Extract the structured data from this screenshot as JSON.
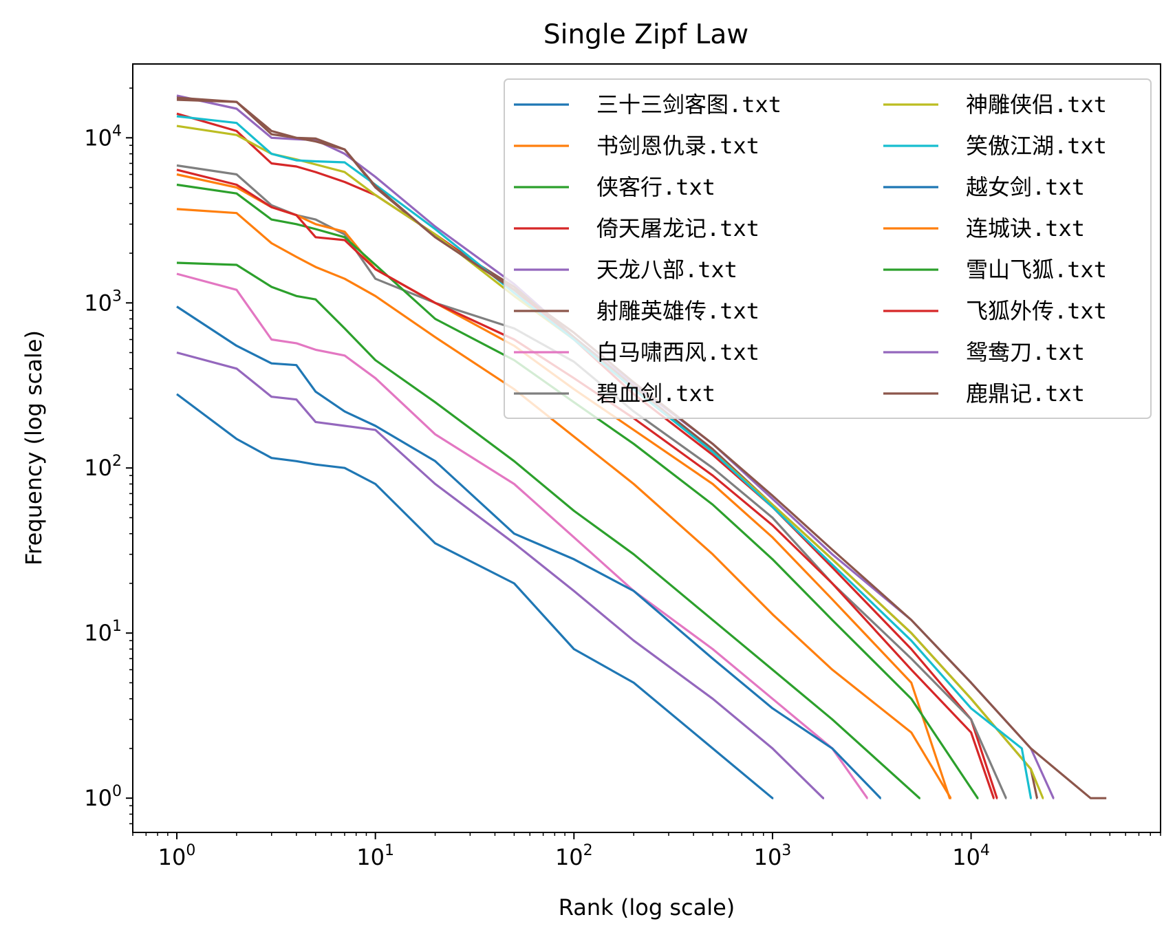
{
  "chart_data": {
    "type": "line",
    "title": "Single Zipf Law",
    "xlabel": "Rank (log scale)",
    "ylabel": "Frequency (log scale)",
    "xscale": "log",
    "yscale": "log",
    "xlim": [
      0.6,
      90000
    ],
    "ylim": [
      0.62,
      28000
    ],
    "xticks": [
      1,
      10,
      100,
      1000,
      10000
    ],
    "yticks": [
      1,
      10,
      100,
      1000,
      10000
    ],
    "xtick_labels": [
      {
        "base": "10",
        "exp": "0"
      },
      {
        "base": "10",
        "exp": "1"
      },
      {
        "base": "10",
        "exp": "2"
      },
      {
        "base": "10",
        "exp": "3"
      },
      {
        "base": "10",
        "exp": "4"
      }
    ],
    "ytick_labels": [
      {
        "base": "10",
        "exp": "0"
      },
      {
        "base": "10",
        "exp": "1"
      },
      {
        "base": "10",
        "exp": "2"
      },
      {
        "base": "10",
        "exp": "3"
      },
      {
        "base": "10",
        "exp": "4"
      }
    ],
    "grid": false,
    "legend": {
      "position": "upper right",
      "columns": 2
    },
    "series": [
      {
        "name": "三十三剑客图.txt",
        "color": "#1f77b4",
        "x": [
          1,
          2,
          3,
          4,
          5,
          7,
          10,
          20,
          50,
          100,
          200,
          500,
          1000,
          1010
        ],
        "y": [
          280,
          150,
          115,
          110,
          105,
          100,
          80,
          35,
          20,
          8,
          5,
          2,
          1,
          1
        ]
      },
      {
        "name": "书剑恩仇录.txt",
        "color": "#ff7f0e",
        "x": [
          1,
          2,
          3,
          4,
          5,
          7,
          10,
          20,
          50,
          100,
          200,
          500,
          1000,
          2000,
          5000,
          7900,
          7950
        ],
        "y": [
          3700,
          3500,
          2300,
          1900,
          1650,
          1400,
          1100,
          620,
          300,
          155,
          80,
          30,
          13,
          6,
          2.5,
          1,
          1
        ]
      },
      {
        "name": "侠客行.txt",
        "color": "#2ca02c",
        "x": [
          1,
          2,
          3,
          4,
          5,
          7,
          10,
          20,
          50,
          100,
          200,
          500,
          1000,
          2000,
          5500,
          5550
        ],
        "y": [
          1750,
          1700,
          1250,
          1100,
          1050,
          700,
          450,
          250,
          110,
          55,
          30,
          12,
          6,
          3,
          1,
          1
        ]
      },
      {
        "name": "倚天屠龙记.txt",
        "color": "#d62728",
        "x": [
          1,
          2,
          3,
          4,
          5,
          7,
          10,
          20,
          50,
          100,
          200,
          500,
          1000,
          2000,
          5000,
          10000,
          13500,
          13600
        ],
        "y": [
          14000,
          11000,
          7000,
          6700,
          6200,
          5400,
          4500,
          2600,
          1200,
          600,
          280,
          120,
          58,
          25,
          8,
          3,
          1,
          1
        ]
      },
      {
        "name": "天龙八部.txt",
        "color": "#9467bd",
        "x": [
          1,
          2,
          3,
          4,
          5,
          7,
          10,
          20,
          50,
          100,
          200,
          500,
          1000,
          2000,
          5000,
          10000,
          20000,
          26000,
          26200
        ],
        "y": [
          18000,
          15000,
          10000,
          9800,
          9700,
          8000,
          5800,
          2900,
          1300,
          620,
          320,
          140,
          65,
          30,
          12,
          5,
          2,
          1,
          1
        ]
      },
      {
        "name": "射雕英雄传.txt",
        "color": "#8c564b",
        "x": [
          1,
          2,
          3,
          4,
          5,
          7,
          10,
          20,
          50,
          100,
          200,
          500,
          1000,
          2000,
          5000,
          10000,
          20000,
          21500,
          21600
        ],
        "y": [
          17000,
          16500,
          10500,
          10000,
          9900,
          8500,
          5000,
          2500,
          1250,
          620,
          310,
          130,
          60,
          28,
          10,
          4,
          1.5,
          1,
          1
        ]
      },
      {
        "name": "白马啸西风.txt",
        "color": "#e377c2",
        "x": [
          1,
          2,
          3,
          4,
          5,
          7,
          10,
          20,
          50,
          100,
          200,
          500,
          1000,
          2000,
          3000,
          3020
        ],
        "y": [
          1500,
          1200,
          600,
          570,
          520,
          480,
          350,
          160,
          80,
          38,
          18,
          8,
          4,
          2,
          1,
          1
        ]
      },
      {
        "name": "碧血剑.txt",
        "color": "#7f7f7f",
        "x": [
          1,
          2,
          3,
          4,
          5,
          7,
          10,
          20,
          50,
          100,
          200,
          500,
          1000,
          2000,
          5000,
          10000,
          15000,
          15100
        ],
        "y": [
          6800,
          6000,
          3900,
          3400,
          3200,
          2600,
          1400,
          1000,
          700,
          440,
          220,
          100,
          50,
          20,
          7,
          3,
          1,
          1
        ]
      },
      {
        "name": "神雕侠侣.txt",
        "color": "#bcbd22",
        "x": [
          1,
          2,
          3,
          4,
          5,
          7,
          10,
          20,
          50,
          100,
          200,
          500,
          1000,
          2000,
          5000,
          10000,
          20000,
          23000,
          23200
        ],
        "y": [
          11800,
          10400,
          8000,
          7400,
          6900,
          6200,
          4500,
          2600,
          1100,
          600,
          300,
          125,
          60,
          28,
          10,
          4,
          1.5,
          1,
          1
        ]
      },
      {
        "name": "笑傲江湖.txt",
        "color": "#17becf",
        "x": [
          1,
          2,
          3,
          4,
          5,
          7,
          10,
          20,
          50,
          100,
          200,
          500,
          1000,
          2000,
          5000,
          10000,
          18000,
          20000,
          20200
        ],
        "y": [
          13500,
          12300,
          8000,
          7300,
          7200,
          7100,
          5200,
          2800,
          1150,
          600,
          300,
          125,
          58,
          26,
          9,
          3.5,
          2,
          1,
          1
        ]
      },
      {
        "name": "越女剑.txt",
        "color": "#1f77b4",
        "x": [
          1,
          2,
          3,
          4,
          5,
          7,
          10,
          20,
          50,
          100,
          200,
          500,
          1000,
          2000,
          3500,
          3520
        ],
        "y": [
          950,
          550,
          430,
          420,
          290,
          220,
          180,
          110,
          40,
          28,
          18,
          7,
          3.5,
          2,
          1,
          1
        ]
      },
      {
        "name": "连城诀.txt",
        "color": "#ff7f0e",
        "x": [
          1,
          2,
          3,
          4,
          5,
          7,
          10,
          20,
          50,
          100,
          200,
          500,
          1000,
          2000,
          5000,
          7800,
          7850
        ],
        "y": [
          6000,
          5000,
          3800,
          3400,
          3000,
          2700,
          1600,
          1000,
          550,
          300,
          170,
          80,
          38,
          16,
          5,
          1,
          1
        ]
      },
      {
        "name": "雪山飞狐.txt",
        "color": "#2ca02c",
        "x": [
          1,
          2,
          3,
          4,
          5,
          7,
          10,
          20,
          50,
          100,
          200,
          500,
          1000,
          2000,
          5000,
          10800,
          10900
        ],
        "y": [
          5200,
          4600,
          3200,
          3000,
          2800,
          2500,
          1700,
          800,
          450,
          250,
          140,
          60,
          28,
          12,
          4,
          1,
          1
        ]
      },
      {
        "name": "飞狐外传.txt",
        "color": "#d62728",
        "x": [
          1,
          2,
          3,
          4,
          5,
          7,
          10,
          20,
          50,
          100,
          200,
          500,
          1000,
          2000,
          5000,
          10000,
          13000,
          13100
        ],
        "y": [
          6400,
          5200,
          3800,
          3400,
          2500,
          2400,
          1600,
          1000,
          600,
          350,
          200,
          90,
          45,
          20,
          6,
          2.5,
          1,
          1
        ]
      },
      {
        "name": "鸳鸯刀.txt",
        "color": "#9467bd",
        "x": [
          1,
          2,
          3,
          4,
          5,
          7,
          10,
          20,
          50,
          100,
          200,
          500,
          1000,
          1800,
          1820
        ],
        "y": [
          500,
          400,
          270,
          260,
          190,
          180,
          170,
          80,
          35,
          18,
          9,
          4,
          2,
          1,
          1
        ]
      },
      {
        "name": "鹿鼎记.txt",
        "color": "#8c564b",
        "x": [
          1,
          2,
          3,
          4,
          5,
          7,
          10,
          20,
          50,
          100,
          200,
          500,
          1000,
          2000,
          5000,
          10000,
          20000,
          40000,
          48000
        ],
        "y": [
          17500,
          16500,
          11000,
          10000,
          9500,
          8500,
          5100,
          2500,
          1200,
          660,
          330,
          140,
          68,
          32,
          12,
          5,
          2,
          1,
          1
        ]
      }
    ]
  }
}
